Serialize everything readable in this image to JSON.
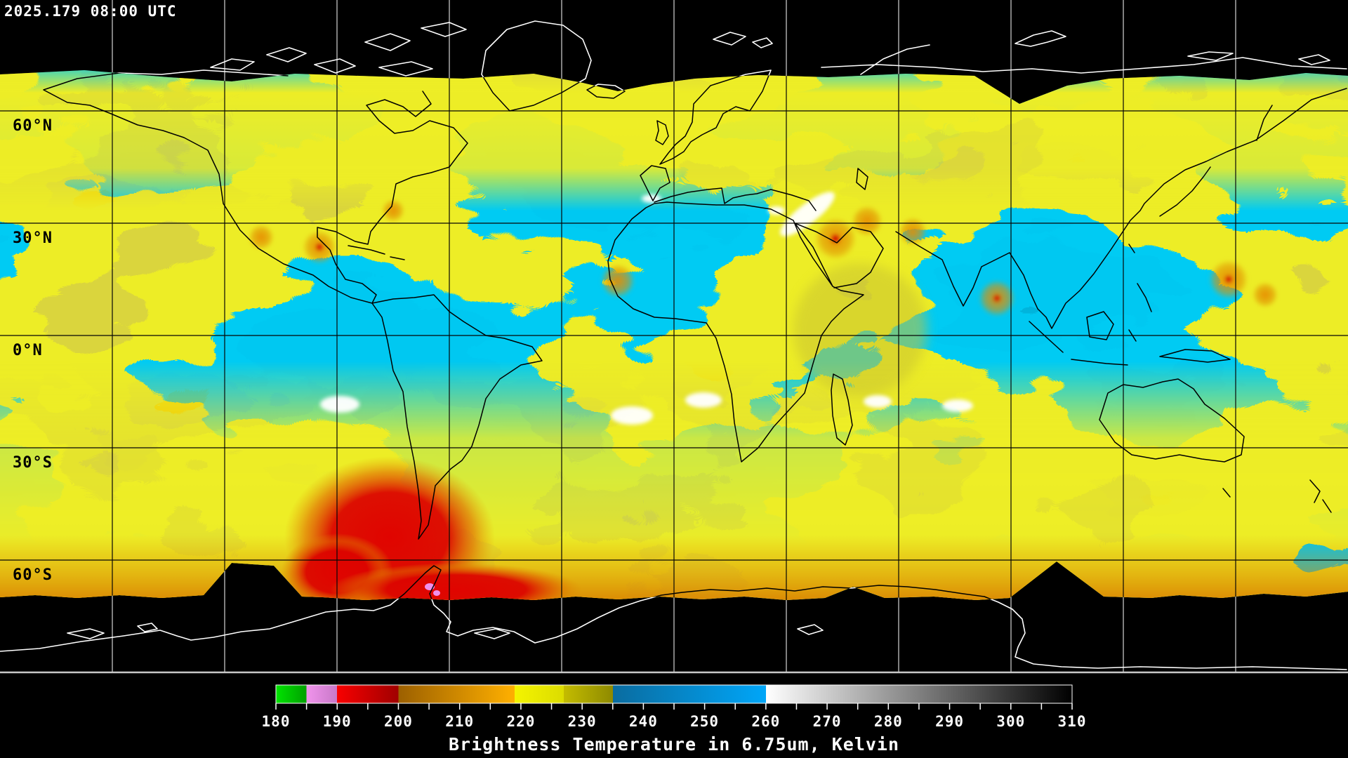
{
  "header": {
    "timestamp": "2025.179 08:00 UTC"
  },
  "map": {
    "projection": "equirectangular",
    "lat_labels": [
      {
        "text": "60°N"
      },
      {
        "text": "30°N"
      },
      {
        "text": "0°N"
      },
      {
        "text": "30°S"
      },
      {
        "text": "60°S"
      }
    ],
    "colors": {
      "space_background": "#000000",
      "moist_cold_yellow": "#d9d900",
      "olive": "#8e8a00",
      "dry_blue": "#0094e0",
      "very_cold_orange": "#e08f00",
      "coldest_red": "#d60500",
      "warm_white": "#ffffff",
      "coastline_over_space": "#ffffff",
      "coastline_over_data": "#000000"
    }
  },
  "colorbar": {
    "caption": "Brightness Temperature in 6.75um, Kelvin",
    "unit": "Kelvin",
    "min": 180,
    "max": 310,
    "tick_step": 5,
    "label_step": 10,
    "labels": [
      "180",
      "190",
      "200",
      "210",
      "220",
      "230",
      "240",
      "250",
      "260",
      "270",
      "280",
      "290",
      "300",
      "310"
    ],
    "segments": [
      {
        "from": 180,
        "to": 185,
        "c1": "#00e400",
        "c2": "#00a000"
      },
      {
        "from": 185,
        "to": 190,
        "c1": "#f094ec",
        "c2": "#c878c8"
      },
      {
        "from": 190,
        "to": 200,
        "c1": "#f80000",
        "c2": "#a00000"
      },
      {
        "from": 200,
        "to": 219,
        "c1": "#9c6000",
        "c2": "#ffb000"
      },
      {
        "from": 219,
        "to": 227,
        "c1": "#f4f400",
        "c2": "#dcdc00"
      },
      {
        "from": 227,
        "to": 235,
        "c1": "#c4bc00",
        "c2": "#8e8a00"
      },
      {
        "from": 235,
        "to": 260,
        "c1": "#0a6ca0",
        "c2": "#00a6f8"
      },
      {
        "from": 260,
        "to": 310,
        "c1": "#ffffff",
        "c2": "#000000"
      }
    ]
  }
}
